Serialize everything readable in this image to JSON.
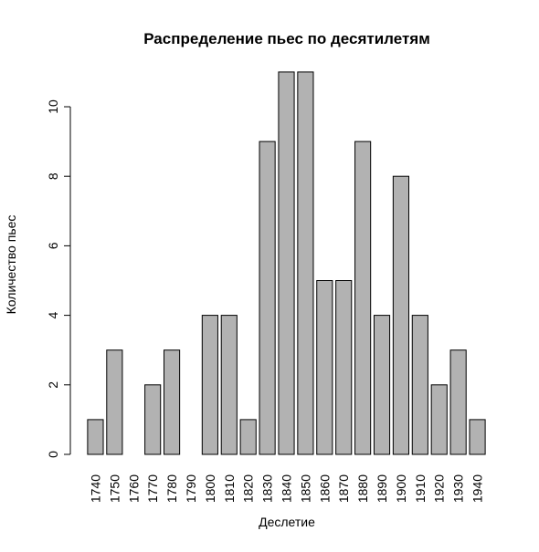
{
  "chart_data": {
    "type": "bar",
    "title": "Распределение пьес по десятилетям",
    "xlabel": "Деслетие",
    "ylabel": "Количество пьес",
    "categories": [
      "1740",
      "1750",
      "1760",
      "1770",
      "1780",
      "1790",
      "1800",
      "1810",
      "1820",
      "1830",
      "1840",
      "1850",
      "1860",
      "1870",
      "1880",
      "1890",
      "1900",
      "1910",
      "1920",
      "1930",
      "1940"
    ],
    "values": [
      1,
      3,
      0,
      2,
      3,
      0,
      4,
      4,
      1,
      9,
      11,
      11,
      5,
      5,
      9,
      4,
      8,
      4,
      2,
      3,
      1
    ],
    "yticks": [
      0,
      2,
      4,
      6,
      8,
      10
    ],
    "ylim": [
      0,
      11
    ],
    "bar_color": "#b2b2b2",
    "grid": false,
    "legend": "none"
  }
}
